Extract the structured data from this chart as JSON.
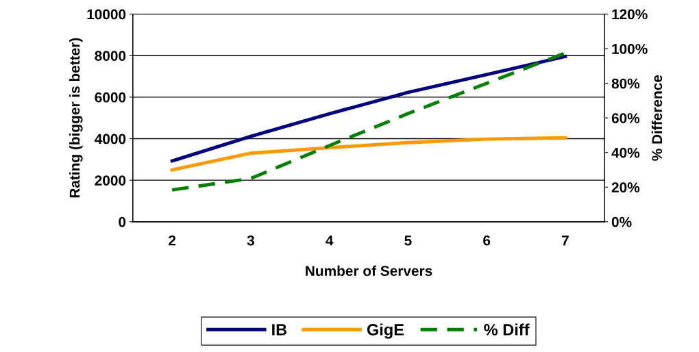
{
  "chart_data": {
    "type": "line",
    "xlabel": "Number of Servers",
    "ylabel": "Rating (bigger is better)",
    "y2label": "% Difference",
    "categories": [
      "2",
      "3",
      "4",
      "5",
      "6",
      "7"
    ],
    "series": [
      {
        "name": "IB",
        "color": "#000080",
        "values": [
          2930,
          4110,
          5200,
          6230,
          7090,
          7960
        ]
      },
      {
        "name": "GigE",
        "color": "#ff9900",
        "values": [
          2500,
          3300,
          3570,
          3810,
          3980,
          4040
        ]
      },
      {
        "name": "% Diff",
        "color": "#008000",
        "values": [
          18.4,
          25,
          44,
          62.5,
          80,
          97.5
        ],
        "axis": "y2",
        "line_style": "dashed"
      }
    ],
    "ylim": [
      0,
      10000
    ],
    "yticks": [
      0,
      2000,
      4000,
      6000,
      8000,
      10000
    ],
    "y2lim": [
      0,
      120
    ],
    "y2ticks": [
      {
        "value": 0,
        "label": "0%"
      },
      {
        "value": 20,
        "label": "20%"
      },
      {
        "value": 40,
        "label": "40%"
      },
      {
        "value": 60,
        "label": "60%"
      },
      {
        "value": 80,
        "label": "80%"
      },
      {
        "value": 100,
        "label": "100%"
      },
      {
        "value": 120,
        "label": "120%"
      }
    ],
    "grid": "y",
    "legend": "bottom",
    "marker": "none",
    "line_style": "solid"
  }
}
